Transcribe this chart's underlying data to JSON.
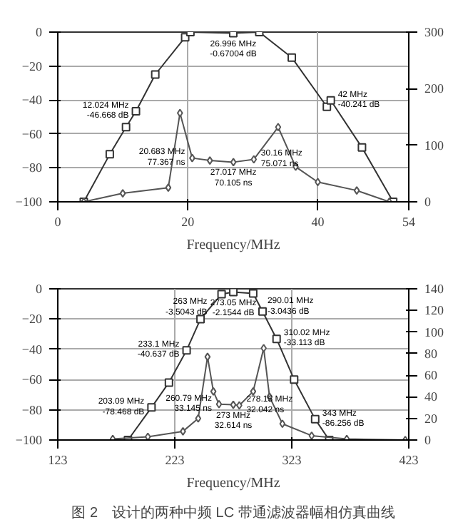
{
  "chart_data": [
    {
      "type": "line",
      "xlabel": "Frequency/MHz",
      "xlim": [
        0,
        54
      ],
      "xticks": [
        0,
        20,
        40,
        54
      ],
      "ylim": [
        -100,
        0
      ],
      "yticks": [
        -100,
        -80,
        -60,
        -40,
        -20,
        0
      ],
      "y2lim": [
        0,
        300
      ],
      "y2ticks": [
        0,
        100,
        200,
        300
      ],
      "grid": true,
      "line_style": "solid",
      "series": [
        {
          "color": "#333333",
          "marker": "square",
          "x": [
            4,
            8,
            10.5,
            12.024,
            15,
            19.6,
            20.4,
            26.996,
            31,
            36,
            41.4,
            42,
            46.8,
            51.6
          ],
          "values": [
            -100,
            -72,
            -56,
            -46.668,
            -25,
            -3,
            0,
            -0.67004,
            0,
            -15,
            -44,
            -40.241,
            -68,
            -100
          ],
          "value_labels": [
            null,
            null,
            null,
            "12.024 MHz\n-46.668 dB",
            null,
            null,
            null,
            "26.996 MHz\n-0.67004 dB",
            null,
            null,
            null,
            "42 MHz\n-40.241 dB",
            null,
            null
          ]
        },
        {
          "color": "#555555",
          "marker": "diamond",
          "axis": "y2",
          "x": [
            4,
            10,
            17,
            18.8,
            20.683,
            23.4,
            27.017,
            30.16,
            33.9,
            36.6,
            40,
            46,
            51
          ],
          "values": [
            0,
            15,
            25,
            157,
            77.367,
            73,
            70.105,
            75.071,
            132,
            62,
            35,
            20,
            0
          ],
          "value_labels": [
            null,
            null,
            null,
            null,
            "20.683 MHz\n77.367 ns",
            null,
            "27.017 MHz\n70.105 ns",
            "30.16 MHz\n75.071 ns",
            null,
            null,
            null,
            null,
            null
          ]
        }
      ]
    },
    {
      "type": "line",
      "xlabel": "Frequency/MHz",
      "xlim": [
        123,
        423
      ],
      "xticks": [
        123,
        223,
        323,
        423
      ],
      "ylim": [
        -100,
        0
      ],
      "yticks": [
        -100,
        -80,
        -60,
        -40,
        -20,
        0
      ],
      "y2lim": [
        0,
        140
      ],
      "y2ticks": [
        0,
        20,
        40,
        60,
        80,
        100,
        120,
        140
      ],
      "grid": true,
      "line_style": "solid",
      "annotations": [
        "图 2　设计的两种中频 LC 带通滤波器幅相仿真曲线"
      ],
      "series": [
        {
          "color": "#333333",
          "marker": "square",
          "x": [
            183,
            203.09,
            218,
            233.1,
            245,
            263,
            273.05,
            290.01,
            298,
            310.02,
            325,
            343,
            355
          ],
          "values": [
            -100,
            -78.468,
            -62,
            -40.637,
            -20,
            -3.5043,
            -2.1544,
            -3.0436,
            -15,
            -33.113,
            -60,
            -86.256,
            -100
          ],
          "value_labels": [
            null,
            "203.09 MHz\n-78.468 dB",
            null,
            "233.1 MHz\n-40.637 dB",
            null,
            "263 MHz\n-3.5043 dB",
            "273.05 MHz\n-2.1544 dB",
            "290.01 MHz\n-3.0436 dB",
            null,
            "310.02 MHz\n-33.113 dB",
            null,
            "343 MHz\n-86.256 dB",
            null
          ]
        },
        {
          "color": "#555555",
          "marker": "diamond",
          "axis": "y2",
          "x": [
            170,
            200,
            230,
            243,
            251,
            256,
            260.79,
            273,
            278.15,
            290,
            299,
            304,
            315,
            340,
            370,
            420
          ],
          "values": [
            1,
            3,
            8,
            20,
            77,
            45,
            33.145,
            32.614,
            32.042,
            45,
            85,
            40,
            15,
            4,
            1,
            0
          ],
          "value_labels": [
            null,
            null,
            null,
            null,
            null,
            null,
            "260.79 MHz\n33.145 ns",
            "273 MHz\n32.614 ns",
            "278.15 MHz\n32.042 ns",
            null,
            null,
            null,
            null,
            null,
            null,
            null
          ]
        }
      ]
    }
  ]
}
